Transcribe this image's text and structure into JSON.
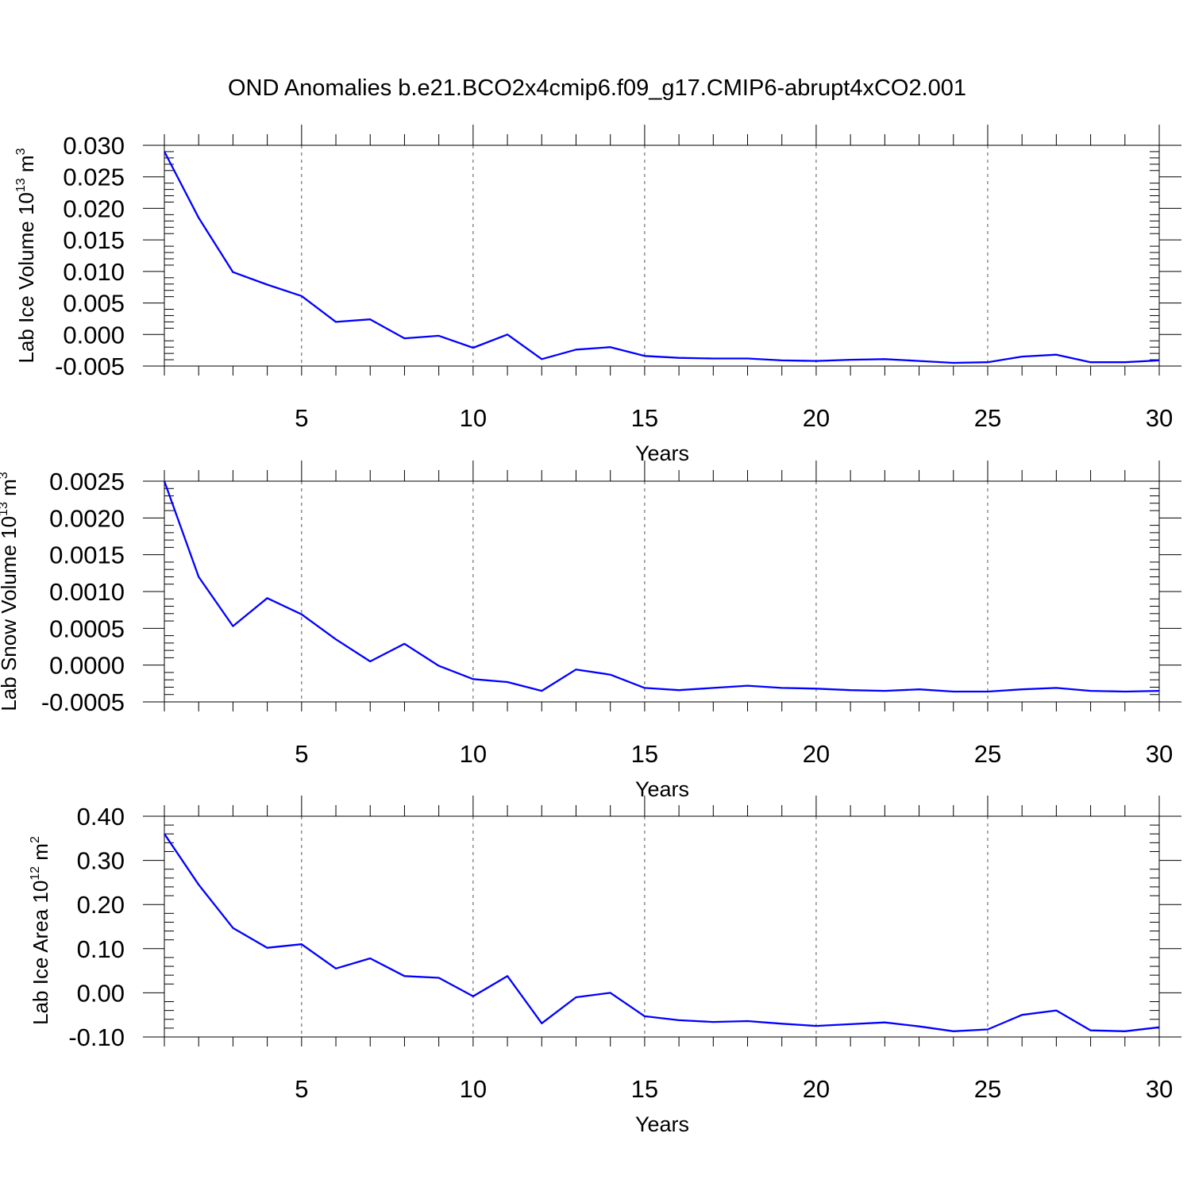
{
  "title": "OND Anomalies b.e21.BCO2x4cmip6.f09_g17.CMIP6-abrupt4xCO2.001",
  "colors": {
    "series": "#0000ff",
    "axis": "#000000",
    "grid": "#555555"
  },
  "chart_data": [
    {
      "type": "line",
      "ylabel": {
        "text": "Lab Ice Volume 10",
        "exp": "13",
        "unit": " m",
        "unit_exp": "3"
      },
      "xlabel": "Years",
      "xlim": [
        1,
        30
      ],
      "ylim": [
        -0.005,
        0.03
      ],
      "yticks": [
        "-0.005",
        "0.000",
        "0.005",
        "0.010",
        "0.015",
        "0.020",
        "0.025",
        "0.030"
      ],
      "ytick_values": [
        -0.005,
        0.0,
        0.005,
        0.01,
        0.015,
        0.02,
        0.025,
        0.03
      ],
      "xticks": [
        "5",
        "10",
        "15",
        "20",
        "25",
        "30"
      ],
      "xtick_values": [
        5,
        10,
        15,
        20,
        25,
        30
      ],
      "grid": "vertical-dashed",
      "x": [
        1,
        2,
        3,
        4,
        5,
        6,
        7,
        8,
        9,
        10,
        11,
        12,
        13,
        14,
        15,
        16,
        17,
        18,
        19,
        20,
        21,
        22,
        23,
        24,
        25,
        26,
        27,
        28,
        29,
        30
      ],
      "values": [
        0.029,
        0.0185,
        0.0099,
        0.0079,
        0.0061,
        0.002,
        0.0024,
        -0.0006,
        -0.0002,
        -0.0021,
        0.0,
        -0.0039,
        -0.0024,
        -0.002,
        -0.0034,
        -0.0037,
        -0.0038,
        -0.0038,
        -0.0041,
        -0.0042,
        -0.004,
        -0.0039,
        -0.0042,
        -0.0045,
        -0.0044,
        -0.0035,
        -0.0032,
        -0.0044,
        -0.0044,
        -0.0041
      ]
    },
    {
      "type": "line",
      "ylabel": {
        "text": "Lab Snow Volume 10",
        "exp": "13",
        "unit": " m",
        "unit_exp": "3"
      },
      "xlabel": "Years",
      "xlim": [
        1,
        30
      ],
      "ylim": [
        -0.0005,
        0.0025
      ],
      "yticks": [
        "-0.0005",
        "0.0000",
        "0.0005",
        "0.0010",
        "0.0015",
        "0.0020",
        "0.0025"
      ],
      "ytick_values": [
        -0.0005,
        0.0,
        0.0005,
        0.001,
        0.0015,
        0.002,
        0.0025
      ],
      "xticks": [
        "5",
        "10",
        "15",
        "20",
        "25",
        "30"
      ],
      "xtick_values": [
        5,
        10,
        15,
        20,
        25,
        30
      ],
      "grid": "vertical-dashed",
      "x": [
        1,
        2,
        3,
        4,
        5,
        6,
        7,
        8,
        9,
        10,
        11,
        12,
        13,
        14,
        15,
        16,
        17,
        18,
        19,
        20,
        21,
        22,
        23,
        24,
        25,
        26,
        27,
        28,
        29,
        30
      ],
      "values": [
        0.0025,
        0.0012,
        0.00053,
        0.00091,
        0.00069,
        0.00035,
        5e-05,
        0.00029,
        -1e-05,
        -0.00019,
        -0.00023,
        -0.00035,
        -6e-05,
        -0.00013,
        -0.00031,
        -0.00034,
        -0.00031,
        -0.00028,
        -0.00031,
        -0.00032,
        -0.00034,
        -0.00035,
        -0.00033,
        -0.00036,
        -0.00036,
        -0.00033,
        -0.00031,
        -0.00035,
        -0.00036,
        -0.00035
      ]
    },
    {
      "type": "line",
      "ylabel": {
        "text": "Lab Ice Area 10",
        "exp": "12",
        "unit": " m",
        "unit_exp": "2"
      },
      "xlabel": "Years",
      "xlim": [
        1,
        30
      ],
      "ylim": [
        -0.1,
        0.4
      ],
      "yticks": [
        "-0.10",
        "0.00",
        "0.10",
        "0.20",
        "0.30",
        "0.40"
      ],
      "ytick_values": [
        -0.1,
        0.0,
        0.1,
        0.2,
        0.3,
        0.4
      ],
      "xticks": [
        "5",
        "10",
        "15",
        "20",
        "25",
        "30"
      ],
      "xtick_values": [
        5,
        10,
        15,
        20,
        25,
        30
      ],
      "grid": "vertical-dashed",
      "x": [
        1,
        2,
        3,
        4,
        5,
        6,
        7,
        8,
        9,
        10,
        11,
        12,
        13,
        14,
        15,
        16,
        17,
        18,
        19,
        20,
        21,
        22,
        23,
        24,
        25,
        26,
        27,
        28,
        29,
        30
      ],
      "values": [
        0.36,
        0.245,
        0.147,
        0.102,
        0.11,
        0.055,
        0.078,
        0.038,
        0.034,
        -0.008,
        0.038,
        -0.069,
        -0.01,
        0.0,
        -0.053,
        -0.062,
        -0.066,
        -0.064,
        -0.07,
        -0.075,
        -0.071,
        -0.067,
        -0.076,
        -0.087,
        -0.083,
        -0.05,
        -0.04,
        -0.085,
        -0.087,
        -0.078
      ]
    }
  ]
}
